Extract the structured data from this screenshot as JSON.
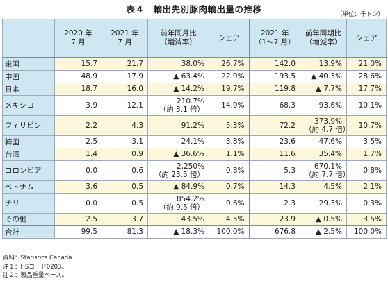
{
  "title": "表４　輸出先別豚肉輸出量の推移",
  "unit": "（単位：千トン）",
  "columns": [
    {
      "line1": "",
      "line2": ""
    },
    {
      "line1": "2020 年",
      "line2": "7 月"
    },
    {
      "line1": "2021 年",
      "line2": "7 月"
    },
    {
      "line1": "前年同月比",
      "line2": "（増減率）"
    },
    {
      "line1": "シェア",
      "line2": ""
    },
    {
      "line1": "2021 年",
      "line2": "（1～7 月）"
    },
    {
      "line1": "前年同期比",
      "line2": "（増減率）"
    },
    {
      "line1": "シェア",
      "line2": ""
    }
  ],
  "rows": [
    {
      "name": "米国",
      "c1": "15.7",
      "c2": "21.7",
      "c3": [
        "38.0%"
      ],
      "c4": "26.7%",
      "c5": "142.0",
      "c6": [
        "13.9%"
      ],
      "c7": "21.0%"
    },
    {
      "name": "中国",
      "c1": "48.9",
      "c2": "17.9",
      "c3": [
        "▲ 63.4%"
      ],
      "c4": "22.0%",
      "c5": "193.5",
      "c6": [
        "▲ 40.3%"
      ],
      "c7": "28.6%"
    },
    {
      "name": "日本",
      "c1": "18.7",
      "c2": "16.0",
      "c3": [
        "▲ 14.2%"
      ],
      "c4": "19.7%",
      "c5": "119.8",
      "c6": [
        "▲ 7.7%"
      ],
      "c7": "17.7%"
    },
    {
      "name": "メキシコ",
      "c1": "3.9",
      "c2": "12.1",
      "c3": [
        "210.7%",
        "（約 3.1 倍）"
      ],
      "c4": "14.9%",
      "c5": "68.3",
      "c6": [
        "93.6%"
      ],
      "c7": "10.1%"
    },
    {
      "name": "フィリピン",
      "c1": "2.2",
      "c2": "4.3",
      "c3": [
        "91.2%"
      ],
      "c4": "5.3%",
      "c5": "72.2",
      "c6": [
        "373.9%",
        "（約 4.7 倍）"
      ],
      "c7": "10.7%"
    },
    {
      "name": "韓国",
      "c1": "2.5",
      "c2": "3.1",
      "c3": [
        "24.1%"
      ],
      "c4": "3.8%",
      "c5": "23.6",
      "c6": [
        "47.6%"
      ],
      "c7": "3.5%"
    },
    {
      "name": "台湾",
      "c1": "1.4",
      "c2": "0.9",
      "c3": [
        "▲ 36.6%"
      ],
      "c4": "1.1%",
      "c5": "11.6",
      "c6": [
        "35.4%"
      ],
      "c7": "1.7%"
    },
    {
      "name": "コロンビア",
      "c1": "0.0",
      "c2": "0.6",
      "c3": [
        "2,250%",
        "（約 23.5 倍）"
      ],
      "c4": "0.8%",
      "c5": "5.3",
      "c6": [
        "670.1%",
        "（約 7.7 倍）"
      ],
      "c7": "0.8%"
    },
    {
      "name": "ベトナム",
      "c1": "3.6",
      "c2": "0.5",
      "c3": [
        "▲ 84.9%"
      ],
      "c4": "0.7%",
      "c5": "14.3",
      "c6": [
        "4.5%"
      ],
      "c7": "2.1%"
    },
    {
      "name": "チリ",
      "c1": "0.0",
      "c2": "0.5",
      "c3": [
        "854.2%",
        "（約 9.5 倍）"
      ],
      "c4": "0.6%",
      "c5": "2.3",
      "c6": [
        "29.3%"
      ],
      "c7": "0.3%"
    },
    {
      "name": "その他",
      "c1": "2.5",
      "c2": "3.7",
      "c3": [
        "43.5%"
      ],
      "c4": "4.5%",
      "c5": "23.9",
      "c6": [
        "▲ 0.5%"
      ],
      "c7": "3.5%"
    },
    {
      "name": "合計",
      "c1": "99.5",
      "c2": "81.3",
      "c3": [
        "▲ 18.3%"
      ],
      "c4": "100.0%",
      "c5": "676.8",
      "c6": [
        "▲ 2.5%"
      ],
      "c7": "100.0%"
    }
  ],
  "notes": [
    "資料：Statistics Canada",
    "注１：HSコード0203。",
    "注２：製品重量ベース。"
  ]
}
